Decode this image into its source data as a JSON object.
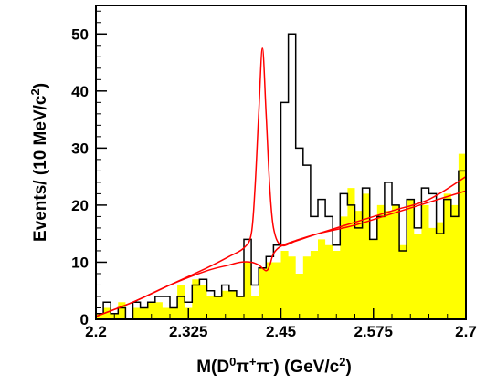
{
  "chart_data": {
    "type": "area",
    "xlabel_parts": [
      "M(D",
      "0",
      "π",
      "+",
      "π",
      "-",
      ") (GeV/c",
      "2",
      ")"
    ],
    "ylabel_parts": [
      "Events/ (10 MeV/c",
      "2",
      ")"
    ],
    "xlim": [
      2.2,
      2.7
    ],
    "ylim": [
      0,
      55
    ],
    "x_ticks": [
      2.2,
      2.325,
      2.45,
      2.575,
      2.7
    ],
    "x_tick_labels": [
      "2.2",
      "2.325",
      "2.45",
      "2.575",
      "2.7"
    ],
    "y_ticks": [
      0,
      10,
      20,
      30,
      40,
      50
    ],
    "y_tick_labels": [
      "0",
      "10",
      "20",
      "30",
      "40",
      "50"
    ],
    "bin_width": 0.01,
    "bin_edges_start": 2.2,
    "series": [
      {
        "style": "histogram-outline",
        "color": "#000000",
        "values": [
          1,
          3,
          1,
          2,
          0,
          3,
          2,
          3,
          4,
          4,
          2,
          4,
          3,
          6,
          7,
          5,
          4,
          6,
          5,
          4,
          14,
          6,
          9,
          11,
          13,
          38,
          50,
          30,
          27,
          18,
          21,
          18,
          13,
          22,
          20,
          16,
          23,
          14,
          18,
          24,
          20,
          12,
          21,
          16,
          23,
          22,
          15,
          21,
          18,
          26,
          21
        ]
      },
      {
        "style": "filled-histogram",
        "color": "#ffff00",
        "values": [
          1,
          2,
          1,
          3,
          0,
          2,
          2,
          3,
          3,
          2,
          2,
          6,
          2,
          7,
          6,
          4,
          4,
          5,
          5,
          4,
          10,
          4,
          9,
          10,
          10,
          12,
          11,
          8,
          11,
          12,
          14,
          13,
          12,
          18,
          23,
          19,
          22,
          14,
          20,
          19,
          20,
          13,
          21,
          15,
          20,
          16,
          17,
          22,
          20,
          29,
          21
        ]
      },
      {
        "style": "fit-curve",
        "color": "#ff0000",
        "x": [
          2.2,
          2.25,
          2.3,
          2.35,
          2.38,
          2.4,
          2.41,
          2.415,
          2.42,
          2.425,
          2.43,
          2.435,
          2.44,
          2.45,
          2.47,
          2.5,
          2.55,
          2.6,
          2.65,
          2.7
        ],
        "values": [
          0.5,
          3,
          6,
          9,
          11,
          12.5,
          15,
          23,
          36,
          47.5,
          36,
          23,
          16,
          13,
          13.7,
          15,
          17,
          19,
          21,
          25
        ]
      },
      {
        "style": "background-curve",
        "color": "#ff0000",
        "x": [
          2.2,
          2.25,
          2.3,
          2.35,
          2.38,
          2.395,
          2.41,
          2.42,
          2.43,
          2.435,
          2.44,
          2.45,
          2.47,
          2.5,
          2.55,
          2.6,
          2.65,
          2.7
        ],
        "values": [
          0.5,
          3,
          6,
          8.5,
          9.5,
          10,
          10,
          9.5,
          8.5,
          9.5,
          11.5,
          12.8,
          13.8,
          15,
          16.5,
          18.5,
          20.5,
          22.5
        ]
      }
    ]
  }
}
